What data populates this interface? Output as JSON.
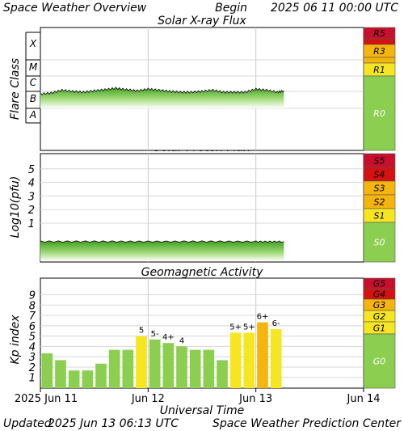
{
  "header": {
    "title": "Space Weather Overview",
    "begin_label": "Begin",
    "begin_value": "2025 06 11 00:00 UTC"
  },
  "footer": {
    "updated_label": "Updated",
    "updated_value": "2025 Jun 13 06:13 UTC",
    "credit": "Space Weather Prediction Center"
  },
  "colors": {
    "bar_green": "#8cce50",
    "bar_yellow": "#f6e622",
    "bar_orange": "#f5b50d",
    "scale_red": "#d51111",
    "scale_darkred": "#c8102e",
    "flux_dark": "#3fa01f",
    "flux_light": "#e6f6d8"
  },
  "chart_data": [
    {
      "type": "area",
      "title": "Solar X-ray Flux",
      "ylabel": "Flare Class",
      "y_categories": [
        "A",
        "B",
        "C",
        "M",
        "X"
      ],
      "scale_labels": [
        "R5",
        "R3",
        "R1",
        "R0"
      ],
      "x_range": [
        "2025-06-11",
        "2025-06-14"
      ],
      "series": [
        {
          "x_days": [
            0.0,
            0.1,
            0.2,
            0.3,
            0.4,
            0.5,
            0.6,
            0.7,
            0.8,
            0.9,
            1.0,
            1.1,
            1.2,
            1.3,
            1.4,
            1.5,
            1.6,
            1.7,
            1.8,
            1.9,
            2.0,
            2.1,
            2.2,
            2.26
          ],
          "class_values": [
            "B7",
            "B8",
            "C1.2",
            "C1.0",
            "B9",
            "C1.1",
            "C1.3",
            "C1.6",
            "C1.3",
            "C1.1",
            "C1.4",
            "C1.2",
            "C1.0",
            "B9",
            "B9",
            "C1.0",
            "C1.2",
            "B9",
            "B9",
            "B9",
            "C1.4",
            "C1.2",
            "B9",
            "C1.1"
          ]
        }
      ]
    },
    {
      "type": "area",
      "title": "Solar Proton Flux",
      "ylabel": "Log10(pfu)",
      "yticks": [
        "1",
        "2",
        "3",
        "4",
        "5"
      ],
      "scale_labels": [
        "S5",
        "S4",
        "S3",
        "S2",
        "S1",
        "S0"
      ],
      "x_range": [
        "2025-06-11",
        "2025-06-14"
      ],
      "series": [
        {
          "x_days": [
            0.0,
            0.5,
            1.0,
            1.5,
            2.0,
            2.26
          ],
          "log10_pfu": [
            -0.35,
            -0.35,
            -0.36,
            -0.35,
            -0.36,
            -0.36
          ]
        }
      ]
    },
    {
      "type": "bar",
      "title": "Geomagnetic Activity",
      "ylabel": "Kp index",
      "xlabel": "Universal Time",
      "yticks": [
        "1",
        "2",
        "3",
        "4",
        "5",
        "6",
        "7",
        "8",
        "9"
      ],
      "ylim": [
        0,
        9
      ],
      "x_tick_labels": [
        "2025 Jun 11",
        "Jun 12",
        "Jun 13",
        "Jun 14"
      ],
      "scale_labels": [
        "G5",
        "G4",
        "G3",
        "G2",
        "G1",
        "G0"
      ],
      "kp_values": [
        3.33,
        2.67,
        1.67,
        1.67,
        2.33,
        3.67,
        3.67,
        5.0,
        4.67,
        4.33,
        4.0,
        3.67,
        3.67,
        2.67,
        5.33,
        5.33,
        6.33,
        5.67
      ],
      "bar_labels": [
        "",
        "",
        "",
        "",
        "",
        "",
        "",
        "5",
        "5-",
        "4+",
        "4",
        "",
        "",
        "",
        "5+",
        "5+",
        "6+",
        "6-"
      ]
    }
  ]
}
